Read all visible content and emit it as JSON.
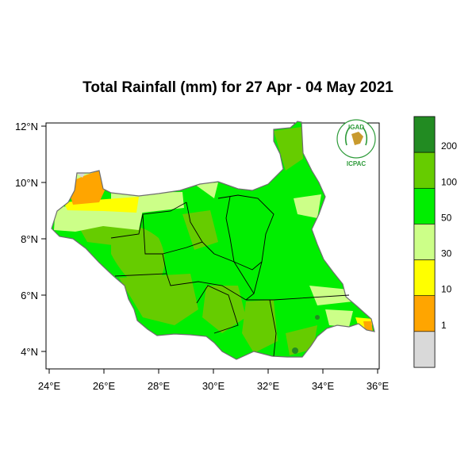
{
  "title": "Total Rainfall (mm) for 27 Apr - 04 May 2021",
  "map": {
    "lon_range": [
      24,
      36
    ],
    "lat_range": [
      3.2,
      12.5
    ],
    "lon_ticks": [
      "24°E",
      "26°E",
      "28°E",
      "30°E",
      "32°E",
      "34°E",
      "36°E"
    ],
    "lat_ticks": [
      "4°N",
      "6°N",
      "8°N",
      "10°N",
      "12°N"
    ],
    "rainfall_classes": [
      {
        "range": "<1",
        "color": "#d9d9d9"
      },
      {
        "range": "1-10",
        "color": "#ffa500"
      },
      {
        "range": "10-30",
        "color": "#ffff00"
      },
      {
        "range": "30-50",
        "color": "#ccff88"
      },
      {
        "range": "50-100",
        "color": "#00ee00"
      },
      {
        "range": "100-200",
        "color": "#66cc00"
      },
      {
        "range": ">200",
        "color": "#228b22"
      }
    ]
  },
  "legend": {
    "labels": [
      "1",
      "10",
      "30",
      "50",
      "100",
      "200"
    ]
  },
  "logo": {
    "top_text": "IGAD",
    "bottom_text": "ICPAC",
    "color": "#2e9b3a"
  }
}
